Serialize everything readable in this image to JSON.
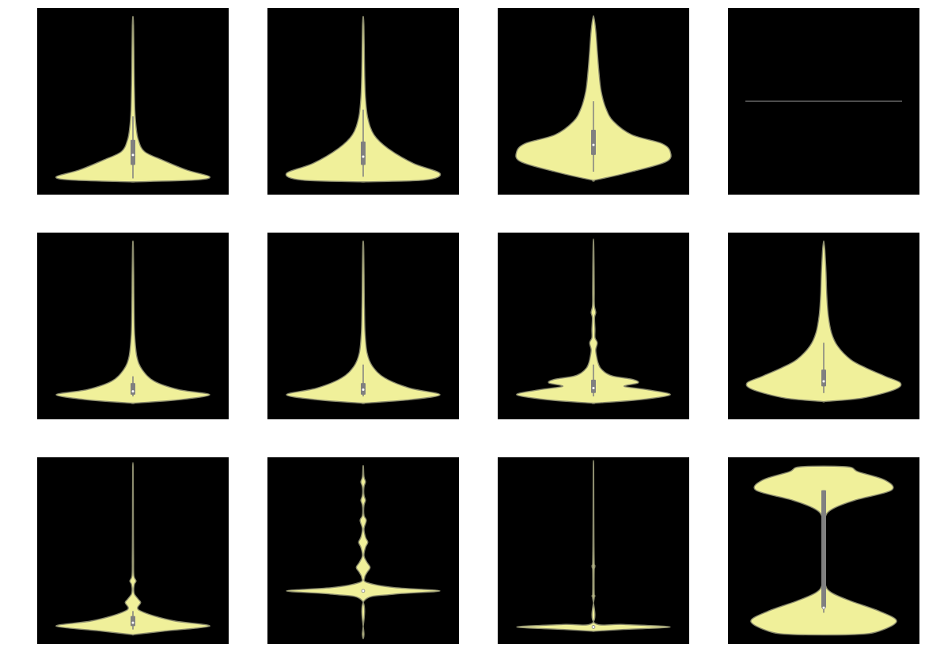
{
  "figure": {
    "background": "#ffffff",
    "panel_background": "#000000",
    "violin_fill": "#f0f09a",
    "violin_edge": "#8c8c6e",
    "inner_box_color": "#808080",
    "median_color": "#ffffff",
    "rows": 3,
    "cols": 4
  },
  "chart_data": [
    {
      "type": "violin",
      "title": "",
      "xlabel": "",
      "ylabel": "",
      "shape": "skewed",
      "ylim": [
        0,
        1
      ],
      "density": [
        [
          0.02,
          0.02
        ],
        [
          0.03,
          0.8
        ],
        [
          0.05,
          1.0
        ],
        [
          0.09,
          0.7
        ],
        [
          0.15,
          0.38
        ],
        [
          0.2,
          0.15
        ],
        [
          0.27,
          0.07
        ],
        [
          0.35,
          0.04
        ],
        [
          0.45,
          0.025
        ],
        [
          0.6,
          0.018
        ],
        [
          0.8,
          0.012
        ],
        [
          0.95,
          0.008
        ],
        [
          1.0,
          0.003
        ]
      ],
      "box": {
        "whislo": 0.04,
        "q1": 0.12,
        "median": 0.18,
        "q3": 0.27,
        "whishi": 0.41
      }
    },
    {
      "type": "violin",
      "title": "",
      "xlabel": "",
      "ylabel": "",
      "shape": "skewed",
      "ylim": [
        0,
        1
      ],
      "density": [
        [
          0.02,
          0.02
        ],
        [
          0.03,
          0.8
        ],
        [
          0.07,
          1.0
        ],
        [
          0.13,
          0.65
        ],
        [
          0.22,
          0.32
        ],
        [
          0.3,
          0.14
        ],
        [
          0.4,
          0.06
        ],
        [
          0.52,
          0.03
        ],
        [
          0.65,
          0.02
        ],
        [
          0.8,
          0.014
        ],
        [
          0.95,
          0.009
        ],
        [
          1.0,
          0.003
        ]
      ],
      "box": {
        "whislo": 0.05,
        "q1": 0.12,
        "median": 0.17,
        "q3": 0.26,
        "whishi": 0.45
      }
    },
    {
      "type": "violin",
      "title": "",
      "xlabel": "",
      "ylabel": "",
      "shape": "skewed",
      "ylim": [
        0,
        1
      ],
      "density": [
        [
          0.03,
          0.02
        ],
        [
          0.08,
          0.5
        ],
        [
          0.14,
          0.95
        ],
        [
          0.2,
          1.0
        ],
        [
          0.25,
          0.88
        ],
        [
          0.3,
          0.5
        ],
        [
          0.38,
          0.26
        ],
        [
          0.46,
          0.16
        ],
        [
          0.56,
          0.1
        ],
        [
          0.68,
          0.07
        ],
        [
          0.8,
          0.05
        ],
        [
          0.92,
          0.03
        ],
        [
          1.0,
          0.006
        ]
      ],
      "box": {
        "whislo": 0.08,
        "q1": 0.18,
        "median": 0.24,
        "q3": 0.33,
        "whishi": 0.5
      }
    },
    {
      "type": "violin",
      "title": "",
      "xlabel": "",
      "ylabel": "",
      "shape": "constant",
      "ylim": [
        0,
        1
      ],
      "value": 0.5
    },
    {
      "type": "violin",
      "title": "",
      "xlabel": "",
      "ylabel": "",
      "shape": "skewed",
      "ylim": [
        0,
        1
      ],
      "density": [
        [
          0.04,
          0.02
        ],
        [
          0.06,
          0.6
        ],
        [
          0.09,
          1.0
        ],
        [
          0.12,
          0.6
        ],
        [
          0.17,
          0.28
        ],
        [
          0.24,
          0.12
        ],
        [
          0.32,
          0.05
        ],
        [
          0.45,
          0.022
        ],
        [
          0.6,
          0.014
        ],
        [
          0.8,
          0.01
        ],
        [
          0.95,
          0.006
        ],
        [
          1.0,
          0.003
        ]
      ],
      "box": {
        "whislo": 0.08,
        "q1": 0.09,
        "median": 0.11,
        "q3": 0.16,
        "whishi": 0.2
      }
    },
    {
      "type": "violin",
      "title": "",
      "xlabel": "",
      "ylabel": "",
      "shape": "skewed",
      "ylim": [
        0,
        1
      ],
      "density": [
        [
          0.04,
          0.02
        ],
        [
          0.06,
          0.6
        ],
        [
          0.09,
          1.0
        ],
        [
          0.13,
          0.6
        ],
        [
          0.19,
          0.28
        ],
        [
          0.26,
          0.12
        ],
        [
          0.34,
          0.05
        ],
        [
          0.46,
          0.024
        ],
        [
          0.6,
          0.016
        ],
        [
          0.8,
          0.011
        ],
        [
          0.95,
          0.007
        ],
        [
          1.0,
          0.003
        ]
      ],
      "box": {
        "whislo": 0.08,
        "q1": 0.09,
        "median": 0.12,
        "q3": 0.16,
        "whishi": 0.27
      }
    },
    {
      "type": "violin",
      "title": "",
      "xlabel": "",
      "ylabel": "",
      "shape": "multimodal",
      "ylim": [
        0,
        1
      ],
      "density": [
        [
          0.04,
          0.02
        ],
        [
          0.06,
          0.6
        ],
        [
          0.09,
          1.0
        ],
        [
          0.12,
          0.7
        ],
        [
          0.14,
          0.4
        ],
        [
          0.16,
          0.58
        ],
        [
          0.18,
          0.52
        ],
        [
          0.2,
          0.26
        ],
        [
          0.22,
          0.16
        ],
        [
          0.25,
          0.09
        ],
        [
          0.28,
          0.06
        ],
        [
          0.32,
          0.04
        ],
        [
          0.36,
          0.03
        ],
        [
          0.4,
          0.05
        ],
        [
          0.43,
          0.02
        ],
        [
          0.48,
          0.02
        ],
        [
          0.55,
          0.014
        ],
        [
          0.58,
          0.03
        ],
        [
          0.62,
          0.012
        ],
        [
          0.7,
          0.01
        ],
        [
          0.85,
          0.008
        ],
        [
          1.0,
          0.003
        ]
      ],
      "box": {
        "whislo": 0.08,
        "q1": 0.1,
        "median": 0.13,
        "q3": 0.18,
        "whishi": 0.27
      }
    },
    {
      "type": "violin",
      "title": "",
      "xlabel": "",
      "ylabel": "",
      "shape": "skewed",
      "ylim": [
        0,
        1
      ],
      "density": [
        [
          0.05,
          0.02
        ],
        [
          0.07,
          0.5
        ],
        [
          0.12,
          0.92
        ],
        [
          0.16,
          1.0
        ],
        [
          0.2,
          0.8
        ],
        [
          0.25,
          0.55
        ],
        [
          0.3,
          0.35
        ],
        [
          0.38,
          0.18
        ],
        [
          0.46,
          0.1
        ],
        [
          0.56,
          0.06
        ],
        [
          0.68,
          0.04
        ],
        [
          0.82,
          0.03
        ],
        [
          0.95,
          0.015
        ],
        [
          1.0,
          0.003
        ]
      ],
      "box": {
        "whislo": 0.1,
        "q1": 0.14,
        "median": 0.17,
        "q3": 0.24,
        "whishi": 0.4
      }
    },
    {
      "type": "violin",
      "title": "",
      "xlabel": "",
      "ylabel": "",
      "shape": "multimodal",
      "ylim": [
        0,
        1
      ],
      "density": [
        [
          0.0,
          0.02
        ],
        [
          0.02,
          0.4
        ],
        [
          0.05,
          1.0
        ],
        [
          0.08,
          0.55
        ],
        [
          0.11,
          0.28
        ],
        [
          0.14,
          0.1
        ],
        [
          0.16,
          0.06
        ],
        [
          0.19,
          0.1
        ],
        [
          0.21,
          0.07
        ],
        [
          0.24,
          0.02
        ],
        [
          0.27,
          0.01
        ],
        [
          0.3,
          0.02
        ],
        [
          0.32,
          0.04
        ],
        [
          0.35,
          0.012
        ],
        [
          0.45,
          0.008
        ],
        [
          0.6,
          0.006
        ],
        [
          0.8,
          0.005
        ],
        [
          1.0,
          0.003
        ]
      ],
      "box": {
        "whislo": 0.03,
        "q1": 0.05,
        "median": 0.07,
        "q3": 0.11,
        "whishi": 0.14
      }
    },
    {
      "type": "violin",
      "title": "",
      "xlabel": "",
      "ylabel": "",
      "shape": "multimodal",
      "ylim": [
        0,
        1
      ],
      "density": [
        [
          0.0,
          0.01
        ],
        [
          0.2,
          0.01
        ],
        [
          0.24,
          0.4
        ],
        [
          0.26,
          1.0
        ],
        [
          0.28,
          0.4
        ],
        [
          0.31,
          0.05
        ],
        [
          0.34,
          0.02
        ],
        [
          0.37,
          0.05
        ],
        [
          0.4,
          0.09
        ],
        [
          0.43,
          0.05
        ],
        [
          0.47,
          0.01
        ],
        [
          0.52,
          0.03
        ],
        [
          0.55,
          0.06
        ],
        [
          0.58,
          0.03
        ],
        [
          0.63,
          0.01
        ],
        [
          0.68,
          0.04
        ],
        [
          0.71,
          0.01
        ],
        [
          0.77,
          0.01
        ],
        [
          0.8,
          0.03
        ],
        [
          0.83,
          0.01
        ],
        [
          0.88,
          0.01
        ],
        [
          0.91,
          0.03
        ],
        [
          0.94,
          0.01
        ],
        [
          1.0,
          0.003
        ]
      ],
      "box": {
        "whislo": 0.26,
        "q1": 0.26,
        "median": 0.26,
        "q3": 0.26,
        "whishi": 0.26
      }
    },
    {
      "type": "violin",
      "title": "",
      "xlabel": "",
      "ylabel": "",
      "shape": "multimodal",
      "ylim": [
        0,
        1
      ],
      "density": [
        [
          0.02,
          0.01
        ],
        [
          0.03,
          0.4
        ],
        [
          0.045,
          1.0
        ],
        [
          0.06,
          0.4
        ],
        [
          0.07,
          0.01
        ],
        [
          0.22,
          0.01
        ],
        [
          0.23,
          0.02
        ],
        [
          0.24,
          0.01
        ],
        [
          0.4,
          0.01
        ],
        [
          0.41,
          0.02
        ],
        [
          0.42,
          0.01
        ],
        [
          0.7,
          0.005
        ],
        [
          1.0,
          0.003
        ]
      ],
      "box": {
        "whislo": 0.045,
        "q1": 0.045,
        "median": 0.045,
        "q3": 0.045,
        "whishi": 0.045
      }
    },
    {
      "type": "violin",
      "title": "",
      "xlabel": "",
      "ylabel": "",
      "shape": "bimodal",
      "ylim": [
        0,
        1
      ],
      "density": [
        [
          0.0,
          0.4
        ],
        [
          0.02,
          0.72
        ],
        [
          0.08,
          0.95
        ],
        [
          0.14,
          0.72
        ],
        [
          0.2,
          0.35
        ],
        [
          0.25,
          0.1
        ],
        [
          0.3,
          0.02
        ],
        [
          0.4,
          0.012
        ],
        [
          0.5,
          0.01
        ],
        [
          0.6,
          0.012
        ],
        [
          0.7,
          0.02
        ],
        [
          0.75,
          0.12
        ],
        [
          0.8,
          0.4
        ],
        [
          0.86,
          0.88
        ],
        [
          0.92,
          0.8
        ],
        [
          0.97,
          0.45
        ],
        [
          1.0,
          0.3
        ]
      ],
      "box": {
        "whislo": 0.13,
        "q1": 0.16,
        "median": 0.16,
        "q3": 0.86,
        "whishi": 0.86
      }
    }
  ]
}
